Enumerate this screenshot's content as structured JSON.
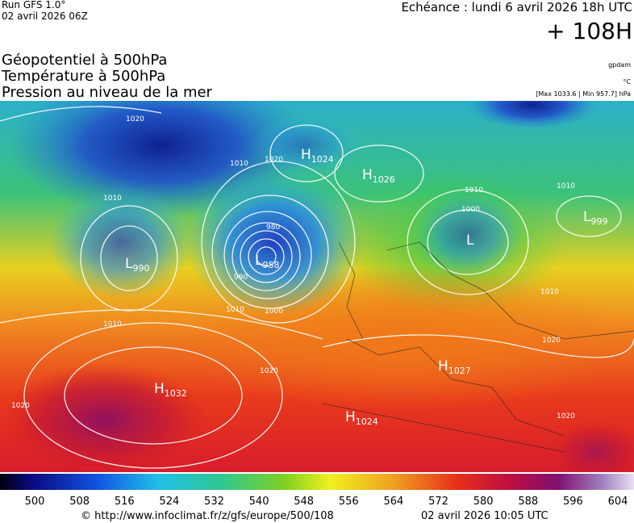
{
  "header": {
    "run": "Run GFS 1.0°",
    "date": "02 avril 2026 06Z",
    "echeance": "Echéance : lundi 6 avril 2026 18h UTC",
    "lead": "+ 108H"
  },
  "legend": {
    "lines": [
      "Géopotentiel à 500hPa",
      "Température à 500hPa",
      "Pression au niveau de la mer"
    ],
    "units": [
      "gpdam",
      "°C",
      "[Max 1033.6 | Min 957.7] hPa"
    ]
  },
  "centers": [
    {
      "letter": "H",
      "value": 1024
    },
    {
      "letter": "H",
      "value": 1026
    },
    {
      "letter": "L",
      "value": 958
    },
    {
      "letter": "L",
      "value": 990
    },
    {
      "letter": "H",
      "value": 1032
    },
    {
      "letter": "H",
      "value": 1027
    },
    {
      "letter": "H",
      "value": 1024
    },
    {
      "letter": "L",
      "value": 999
    },
    {
      "letter": "L"
    }
  ],
  "isobar_labels": [
    "1020",
    "1010",
    "1020",
    "1010",
    "980",
    "990",
    "1000",
    "1010",
    "1010",
    "1020",
    "1020",
    "1010",
    "1010",
    "1000",
    "1010",
    "1020",
    "1020"
  ],
  "scale": {
    "labels": [
      500,
      508,
      516,
      524,
      532,
      540,
      548,
      556,
      564,
      572,
      580,
      588,
      596,
      604
    ]
  },
  "footer": {
    "url": "© http://www.infoclimat.fr/z/gfs/europe/500/108",
    "stamp": "02 avril 2026 10:05 UTC"
  }
}
